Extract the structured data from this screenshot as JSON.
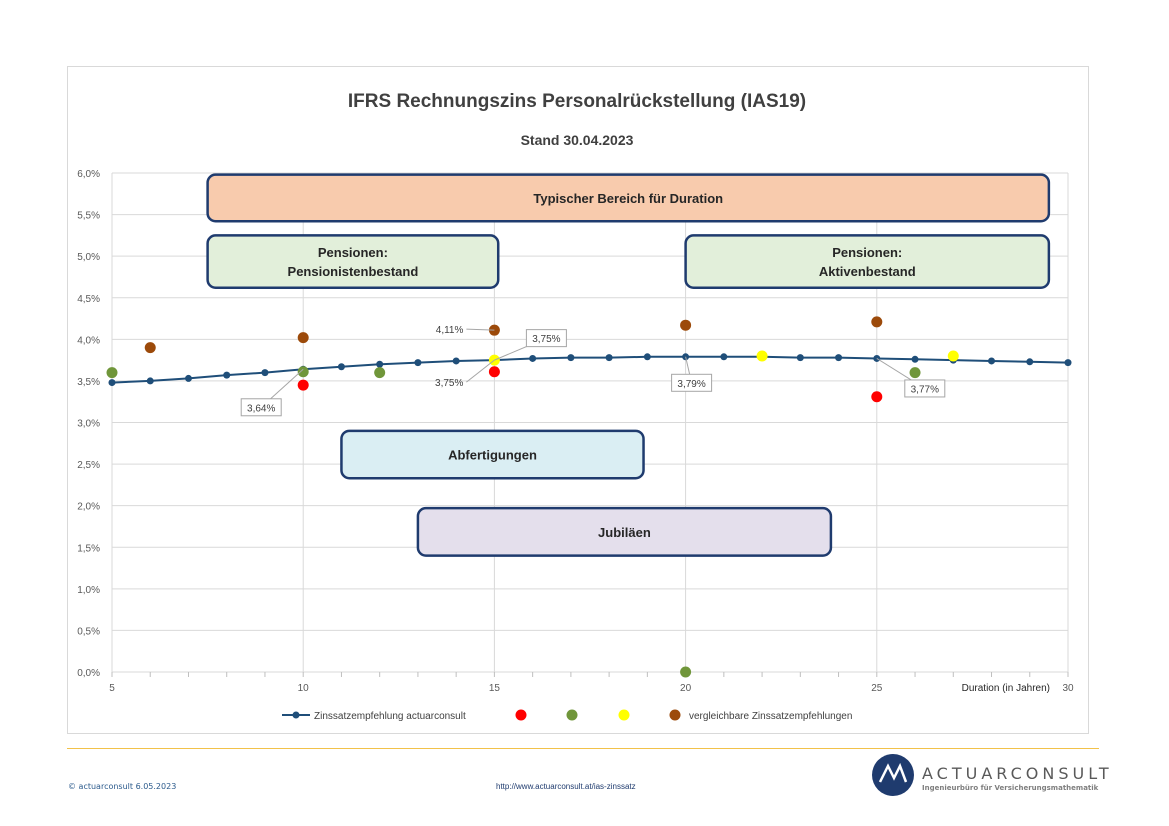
{
  "chart_data": {
    "type": "scatter",
    "title": "IFRS Rechnungszins Personalrückstellung (IAS19)",
    "subtitle": "Stand 30.04.2023",
    "xlabel": "Duration (in Jahren)",
    "xlim": [
      5,
      30
    ],
    "ylim": [
      0,
      6
    ],
    "x_ticks": [
      "5",
      "10",
      "15",
      "20",
      "25",
      "30"
    ],
    "y_ticks": [
      "0,0%",
      "0,5%",
      "1,0%",
      "1,5%",
      "2,0%",
      "2,5%",
      "3,0%",
      "3,5%",
      "4,0%",
      "4,5%",
      "5,0%",
      "5,5%",
      "6,0%"
    ],
    "grid": true,
    "legend_position": "bottom",
    "series": [
      {
        "name": "Zinssatzempfehlung actuarconsult",
        "kind": "line",
        "color": "#1f4e79",
        "points": [
          [
            5,
            3.48
          ],
          [
            6,
            3.5
          ],
          [
            7,
            3.53
          ],
          [
            8,
            3.57
          ],
          [
            9,
            3.6
          ],
          [
            10,
            3.64
          ],
          [
            11,
            3.67
          ],
          [
            12,
            3.7
          ],
          [
            13,
            3.72
          ],
          [
            14,
            3.74
          ],
          [
            15,
            3.75
          ],
          [
            16,
            3.77
          ],
          [
            17,
            3.78
          ],
          [
            18,
            3.78
          ],
          [
            19,
            3.79
          ],
          [
            20,
            3.79
          ],
          [
            21,
            3.79
          ],
          [
            22,
            3.79
          ],
          [
            23,
            3.78
          ],
          [
            24,
            3.78
          ],
          [
            25,
            3.77
          ],
          [
            26,
            3.76
          ],
          [
            27,
            3.75
          ],
          [
            28,
            3.74
          ],
          [
            29,
            3.73
          ],
          [
            30,
            3.72
          ]
        ]
      },
      {
        "name": "",
        "kind": "dot",
        "color": "#ff0000",
        "points": [
          [
            10,
            3.45
          ],
          [
            15,
            3.61
          ],
          [
            25,
            3.31
          ]
        ]
      },
      {
        "name": "",
        "kind": "dot",
        "color": "#70963a",
        "points": [
          [
            5,
            3.6
          ],
          [
            10,
            3.61
          ],
          [
            12,
            3.6
          ],
          [
            20,
            0.0
          ],
          [
            26,
            3.6
          ]
        ]
      },
      {
        "name": "",
        "kind": "dot",
        "color": "#ffff00",
        "points": [
          [
            15,
            3.75
          ],
          [
            22,
            3.8
          ],
          [
            27,
            3.8
          ]
        ]
      },
      {
        "name": "vergleichbare Zinssatzempfehlungen",
        "kind": "dot",
        "color": "#9c4a0a",
        "points": [
          [
            6,
            3.9
          ],
          [
            10,
            4.02
          ],
          [
            15,
            4.11
          ],
          [
            20,
            4.17
          ],
          [
            25,
            4.21
          ]
        ]
      }
    ],
    "callouts": [
      {
        "text": "3,64%",
        "x": 10,
        "y": 3.64
      },
      {
        "text": "3,75%",
        "x": 15,
        "y": 3.75
      },
      {
        "text": "3,75%",
        "x": 15,
        "y": 3.75
      },
      {
        "text": "4,11%",
        "x": 15,
        "y": 4.11
      },
      {
        "text": "3,79%",
        "x": 20,
        "y": 3.79
      },
      {
        "text": "3,77%",
        "x": 25,
        "y": 3.77
      }
    ],
    "range_boxes": [
      {
        "lines": [
          "Typischer Bereich für Duration"
        ],
        "x_from": 7.5,
        "x_to": 29.5,
        "y_from": 5.42,
        "y_to": 5.98,
        "fill": "#f8cbad"
      },
      {
        "lines": [
          "Pensionen:",
          "Pensionistenbestand"
        ],
        "x_from": 7.5,
        "x_to": 15.1,
        "y_from": 4.62,
        "y_to": 5.25,
        "fill": "#e2efda"
      },
      {
        "lines": [
          "Pensionen:",
          "Aktivenbestand"
        ],
        "x_from": 20,
        "x_to": 29.5,
        "y_from": 4.62,
        "y_to": 5.25,
        "fill": "#e2efda"
      },
      {
        "lines": [
          "Abfertigungen"
        ],
        "x_from": 11,
        "x_to": 18.9,
        "y_from": 2.33,
        "y_to": 2.9,
        "fill": "#daeef3"
      },
      {
        "lines": [
          "Jubiläen"
        ],
        "x_from": 13,
        "x_to": 23.8,
        "y_from": 1.4,
        "y_to": 1.97,
        "fill": "#e4dfec"
      }
    ]
  },
  "footer": {
    "copyright": "© actuarconsult 6.05.2023",
    "url": "http://www.actuarconsult.at/ias-zinssatz",
    "logo_word": "ACTUARCONSULT",
    "logo_sub": "Ingenieurbüro für Versicherungsmathematik"
  }
}
